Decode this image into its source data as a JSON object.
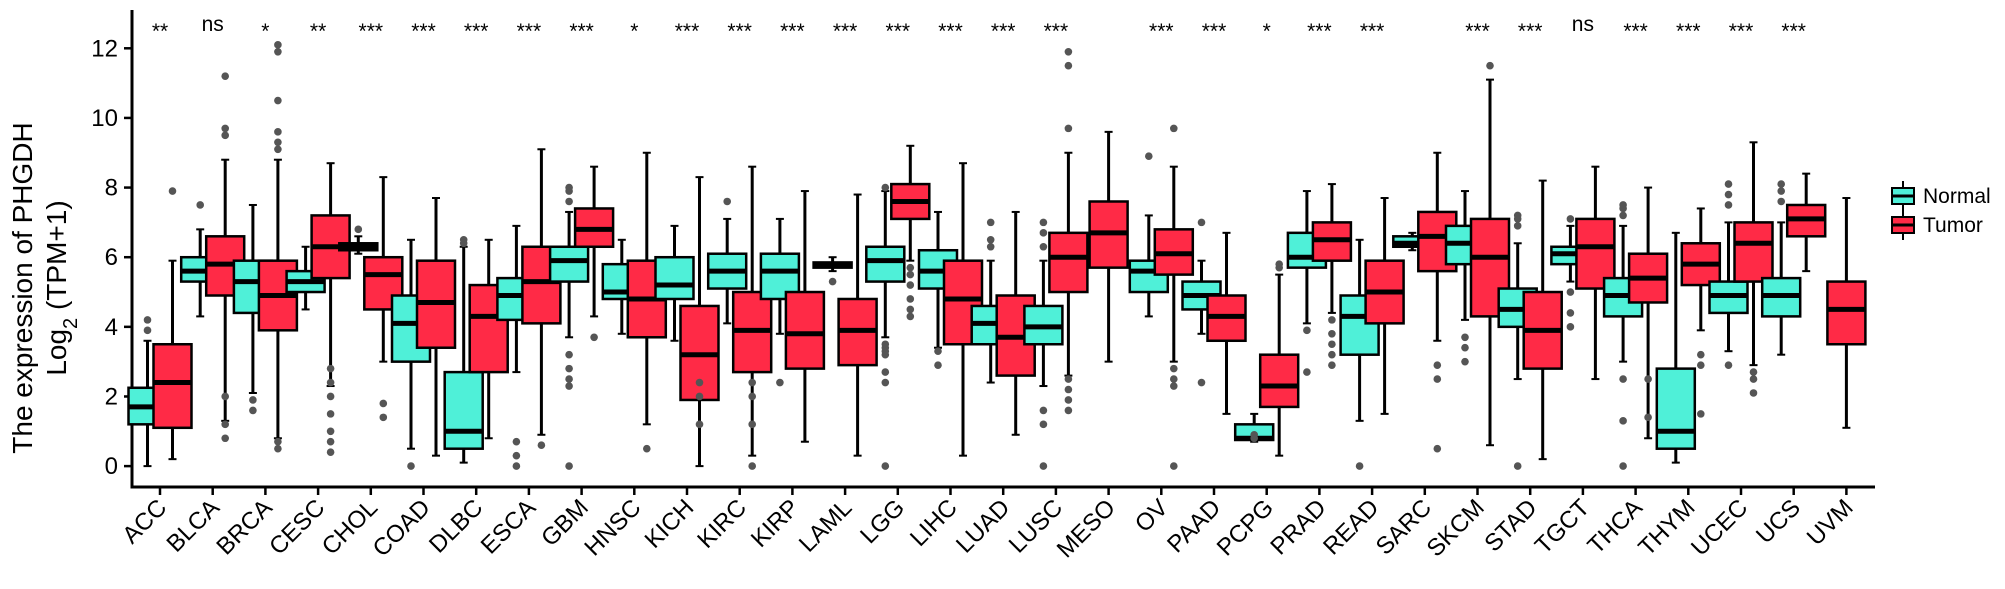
{
  "chart_data": {
    "type": "box",
    "ylabel_line1": "The expression of PHGDH",
    "ylabel_line2_main": "Log",
    "ylabel_line2_sub": "2",
    "ylabel_line2_rest": " (TPM+1)",
    "ylim": [
      -0.6,
      13.1
    ],
    "yticks": [
      0,
      2,
      4,
      6,
      8,
      10,
      12
    ],
    "colors": {
      "Normal": "#4ff0d8",
      "Tumor": "#ff2a46",
      "outlier": "#555555"
    },
    "legend": {
      "position": "right",
      "entries": [
        "Normal",
        "Tumor"
      ]
    },
    "categories": [
      {
        "name": "ACC",
        "sig": "**",
        "normal": {
          "whislo": 0.0,
          "q1": 1.2,
          "med": 1.7,
          "q3": 2.25,
          "whishi": 3.6,
          "out": [
            3.9,
            4.2
          ]
        },
        "tumor": {
          "whislo": 0.2,
          "q1": 1.1,
          "med": 2.4,
          "q3": 3.5,
          "whishi": 5.9,
          "out": [
            7.9
          ]
        }
      },
      {
        "name": "BLCA",
        "sig": "ns",
        "normal": {
          "whislo": 4.3,
          "q1": 5.3,
          "med": 5.6,
          "q3": 6.0,
          "whishi": 6.8,
          "out": [
            7.5
          ]
        },
        "tumor": {
          "whislo": 1.3,
          "q1": 4.9,
          "med": 5.8,
          "q3": 6.6,
          "whishi": 8.8,
          "out": [
            0.8,
            1.2,
            2.0,
            9.5,
            9.7,
            11.2
          ]
        }
      },
      {
        "name": "BRCA",
        "sig": "*",
        "normal": {
          "whislo": 2.1,
          "q1": 4.4,
          "med": 5.3,
          "q3": 5.9,
          "whishi": 7.5,
          "out": [
            1.6,
            1.9
          ]
        },
        "tumor": {
          "whislo": 0.8,
          "q1": 3.9,
          "med": 4.9,
          "q3": 5.9,
          "whishi": 8.8,
          "out": [
            0.5,
            0.7,
            9.1,
            9.3,
            9.6,
            10.5,
            11.9,
            12.1
          ]
        }
      },
      {
        "name": "CESC",
        "sig": "**",
        "normal": {
          "whislo": 4.5,
          "q1": 5.0,
          "med": 5.3,
          "q3": 5.6,
          "whishi": 6.3,
          "out": []
        },
        "tumor": {
          "whislo": 2.3,
          "q1": 5.4,
          "med": 6.3,
          "q3": 7.2,
          "whishi": 8.7,
          "out": [
            0.4,
            0.7,
            1.0,
            1.5,
            2.0,
            2.4,
            2.8
          ]
        }
      },
      {
        "name": "CHOL",
        "sig": "***",
        "normal": {
          "whislo": 6.1,
          "q1": 6.2,
          "med": 6.3,
          "q3": 6.4,
          "whishi": 6.6,
          "out": [
            6.8
          ]
        },
        "tumor": {
          "whislo": 3.0,
          "q1": 4.5,
          "med": 5.5,
          "q3": 6.0,
          "whishi": 8.3,
          "out": [
            1.4,
            1.8
          ]
        }
      },
      {
        "name": "COAD",
        "sig": "***",
        "normal": {
          "whislo": 0.5,
          "q1": 3.0,
          "med": 4.1,
          "q3": 4.9,
          "whishi": 6.5,
          "out": [
            0.0
          ]
        },
        "tumor": {
          "whislo": 0.3,
          "q1": 3.4,
          "med": 4.7,
          "q3": 5.9,
          "whishi": 7.7,
          "out": []
        }
      },
      {
        "name": "DLBC",
        "sig": "***",
        "normal": {
          "whislo": 0.1,
          "q1": 0.5,
          "med": 1.0,
          "q3": 2.7,
          "whishi": 6.3,
          "out": [
            6.4,
            6.5
          ]
        },
        "tumor": {
          "whislo": 0.8,
          "q1": 2.7,
          "med": 4.3,
          "q3": 5.2,
          "whishi": 6.5,
          "out": []
        }
      },
      {
        "name": "ESCA",
        "sig": "***",
        "normal": {
          "whislo": 2.7,
          "q1": 4.2,
          "med": 4.9,
          "q3": 5.4,
          "whishi": 6.9,
          "out": [
            0.0,
            0.3,
            0.7
          ]
        },
        "tumor": {
          "whislo": 0.9,
          "q1": 4.1,
          "med": 5.3,
          "q3": 6.3,
          "whishi": 9.1,
          "out": [
            0.6
          ]
        }
      },
      {
        "name": "GBM",
        "sig": "***",
        "normal": {
          "whislo": 3.7,
          "q1": 5.3,
          "med": 5.9,
          "q3": 6.3,
          "whishi": 7.3,
          "out": [
            0.0,
            2.3,
            2.5,
            2.8,
            3.2,
            7.6,
            7.9,
            8.0
          ]
        },
        "tumor": {
          "whislo": 4.3,
          "q1": 6.3,
          "med": 6.8,
          "q3": 7.4,
          "whishi": 8.6,
          "out": [
            3.7
          ]
        }
      },
      {
        "name": "HNSC",
        "sig": "*",
        "normal": {
          "whislo": 3.8,
          "q1": 4.8,
          "med": 5.0,
          "q3": 5.8,
          "whishi": 6.5,
          "out": []
        },
        "tumor": {
          "whislo": 1.2,
          "q1": 3.7,
          "med": 4.8,
          "q3": 5.9,
          "whishi": 9.0,
          "out": [
            0.5
          ]
        }
      },
      {
        "name": "KICH",
        "sig": "***",
        "normal": {
          "whislo": 3.6,
          "q1": 4.8,
          "med": 5.2,
          "q3": 6.0,
          "whishi": 6.9,
          "out": []
        },
        "tumor": {
          "whislo": 0.0,
          "q1": 1.9,
          "med": 3.2,
          "q3": 4.6,
          "whishi": 8.3,
          "out": [
            1.2,
            2.0,
            2.4
          ]
        }
      },
      {
        "name": "KIRC",
        "sig": "***",
        "normal": {
          "whislo": 4.1,
          "q1": 5.1,
          "med": 5.6,
          "q3": 6.1,
          "whishi": 7.1,
          "out": [
            7.6
          ]
        },
        "tumor": {
          "whislo": 0.3,
          "q1": 2.7,
          "med": 3.9,
          "q3": 5.0,
          "whishi": 8.6,
          "out": [
            0.0,
            1.2,
            2.0,
            2.4
          ]
        }
      },
      {
        "name": "KIRP",
        "sig": "***",
        "normal": {
          "whislo": 3.8,
          "q1": 4.8,
          "med": 5.6,
          "q3": 6.1,
          "whishi": 7.1,
          "out": [
            2.4
          ]
        },
        "tumor": {
          "whislo": 0.7,
          "q1": 2.8,
          "med": 3.8,
          "q3": 5.0,
          "whishi": 7.9,
          "out": []
        }
      },
      {
        "name": "LAML",
        "sig": "***",
        "normal": {
          "whislo": 5.6,
          "q1": 5.7,
          "med": 5.75,
          "q3": 5.85,
          "whishi": 6.0,
          "out": [
            5.3
          ]
        },
        "tumor": {
          "whislo": 0.3,
          "q1": 2.9,
          "med": 3.9,
          "q3": 4.8,
          "whishi": 7.8,
          "out": []
        }
      },
      {
        "name": "LGG",
        "sig": "***",
        "normal": {
          "whislo": 3.7,
          "q1": 5.3,
          "med": 5.9,
          "q3": 6.3,
          "whishi": 7.9,
          "out": [
            0.0,
            2.4,
            2.7,
            3.2,
            3.3,
            3.4,
            3.5,
            8.0
          ]
        },
        "tumor": {
          "whislo": 5.9,
          "q1": 7.1,
          "med": 7.6,
          "q3": 8.1,
          "whishi": 9.2,
          "out": [
            4.3,
            4.5,
            4.8,
            5.2,
            5.5,
            5.7
          ]
        }
      },
      {
        "name": "LIHC",
        "sig": "***",
        "normal": {
          "whislo": 3.4,
          "q1": 5.1,
          "med": 5.6,
          "q3": 6.2,
          "whishi": 7.3,
          "out": [
            2.9,
            3.3
          ]
        },
        "tumor": {
          "whislo": 0.3,
          "q1": 3.5,
          "med": 4.8,
          "q3": 5.9,
          "whishi": 8.7,
          "out": []
        }
      },
      {
        "name": "LUAD",
        "sig": "***",
        "normal": {
          "whislo": 2.4,
          "q1": 3.5,
          "med": 4.1,
          "q3": 4.6,
          "whishi": 5.9,
          "out": [
            6.3,
            6.5,
            7.0
          ]
        },
        "tumor": {
          "whislo": 0.9,
          "q1": 2.6,
          "med": 3.7,
          "q3": 4.9,
          "whishi": 7.3,
          "out": []
        }
      },
      {
        "name": "LUSC",
        "sig": "***",
        "normal": {
          "whislo": 2.3,
          "q1": 3.5,
          "med": 4.0,
          "q3": 4.6,
          "whishi": 5.9,
          "out": [
            0.0,
            1.2,
            1.6,
            6.3,
            6.7,
            7.0
          ]
        },
        "tumor": {
          "whislo": 2.6,
          "q1": 5.0,
          "med": 6.0,
          "q3": 6.7,
          "whishi": 9.0,
          "out": [
            1.6,
            1.9,
            2.2,
            2.5,
            9.7,
            11.5,
            11.9
          ]
        }
      },
      {
        "name": "MESO",
        "sig": "",
        "normal": null,
        "tumor": {
          "whislo": 3.0,
          "q1": 5.7,
          "med": 6.7,
          "q3": 7.6,
          "whishi": 9.6,
          "out": []
        }
      },
      {
        "name": "OV",
        "sig": "***",
        "normal": {
          "whislo": 4.3,
          "q1": 5.0,
          "med": 5.6,
          "q3": 5.9,
          "whishi": 7.2,
          "out": [
            8.9
          ]
        },
        "tumor": {
          "whislo": 3.0,
          "q1": 5.5,
          "med": 6.1,
          "q3": 6.8,
          "whishi": 8.6,
          "out": [
            0.0,
            2.3,
            2.5,
            2.8,
            9.7
          ]
        }
      },
      {
        "name": "PAAD",
        "sig": "***",
        "normal": {
          "whislo": 3.8,
          "q1": 4.5,
          "med": 4.9,
          "q3": 5.3,
          "whishi": 5.9,
          "out": [
            2.4,
            7.0
          ]
        },
        "tumor": {
          "whislo": 1.5,
          "q1": 3.6,
          "med": 4.3,
          "q3": 4.9,
          "whishi": 6.7,
          "out": []
        }
      },
      {
        "name": "PCPG",
        "sig": "*",
        "normal": {
          "whislo": 0.7,
          "q1": 0.75,
          "med": 0.8,
          "q3": 1.2,
          "whishi": 1.5,
          "out": [
            0.8,
            0.9
          ]
        },
        "tumor": {
          "whislo": 0.3,
          "q1": 1.7,
          "med": 2.3,
          "q3": 3.2,
          "whishi": 5.5,
          "out": [
            5.7,
            5.8
          ]
        }
      },
      {
        "name": "PRAD",
        "sig": "***",
        "normal": {
          "whislo": 4.1,
          "q1": 5.7,
          "med": 6.0,
          "q3": 6.7,
          "whishi": 7.9,
          "out": [
            2.7,
            3.9
          ]
        },
        "tumor": {
          "whislo": 4.4,
          "q1": 5.9,
          "med": 6.5,
          "q3": 7.0,
          "whishi": 8.1,
          "out": [
            2.9,
            3.2,
            3.5,
            3.8,
            4.2
          ]
        }
      },
      {
        "name": "READ",
        "sig": "***",
        "normal": {
          "whislo": 1.3,
          "q1": 3.2,
          "med": 4.3,
          "q3": 4.9,
          "whishi": 6.5,
          "out": [
            0.0
          ]
        },
        "tumor": {
          "whislo": 1.5,
          "q1": 4.1,
          "med": 5.0,
          "q3": 5.9,
          "whishi": 7.7,
          "out": []
        }
      },
      {
        "name": "SARC",
        "sig": "",
        "normal": {
          "whislo": 6.2,
          "q1": 6.3,
          "med": 6.4,
          "q3": 6.6,
          "whishi": 6.7,
          "out": []
        },
        "tumor": {
          "whislo": 3.6,
          "q1": 5.6,
          "med": 6.6,
          "q3": 7.3,
          "whishi": 9.0,
          "out": [
            0.5,
            2.5,
            2.9
          ]
        }
      },
      {
        "name": "SKCM",
        "sig": "***",
        "normal": {
          "whislo": 4.2,
          "q1": 5.8,
          "med": 6.4,
          "q3": 6.9,
          "whishi": 7.9,
          "out": [
            3.0,
            3.4,
            3.7
          ]
        },
        "tumor": {
          "whislo": 0.6,
          "q1": 4.3,
          "med": 6.0,
          "q3": 7.1,
          "whishi": 11.1,
          "out": [
            11.5
          ]
        }
      },
      {
        "name": "STAD",
        "sig": "***",
        "normal": {
          "whislo": 2.5,
          "q1": 4.0,
          "med": 4.5,
          "q3": 5.1,
          "whishi": 6.4,
          "out": [
            0.0,
            6.9,
            7.1,
            7.2
          ]
        },
        "tumor": {
          "whislo": 0.2,
          "q1": 2.8,
          "med": 3.9,
          "q3": 5.0,
          "whishi": 8.2,
          "out": []
        }
      },
      {
        "name": "TGCT",
        "sig": "ns",
        "normal": {
          "whislo": 5.3,
          "q1": 5.8,
          "med": 6.1,
          "q3": 6.3,
          "whishi": 6.9,
          "out": [
            4.0,
            4.4,
            5.0,
            7.1
          ]
        },
        "tumor": {
          "whislo": 2.5,
          "q1": 5.1,
          "med": 6.3,
          "q3": 7.1,
          "whishi": 8.6,
          "out": []
        }
      },
      {
        "name": "THCA",
        "sig": "***",
        "normal": {
          "whislo": 3.0,
          "q1": 4.3,
          "med": 4.9,
          "q3": 5.4,
          "whishi": 6.9,
          "out": [
            0.0,
            1.3,
            2.5,
            7.2,
            7.4,
            7.5
          ]
        },
        "tumor": {
          "whislo": 0.8,
          "q1": 4.7,
          "med": 5.4,
          "q3": 6.1,
          "whishi": 8.0,
          "out": [
            1.4,
            2.5
          ]
        }
      },
      {
        "name": "THYM",
        "sig": "***",
        "normal": {
          "whislo": 0.1,
          "q1": 0.5,
          "med": 1.0,
          "q3": 2.8,
          "whishi": 6.7,
          "out": []
        },
        "tumor": {
          "whislo": 3.9,
          "q1": 5.2,
          "med": 5.8,
          "q3": 6.4,
          "whishi": 7.4,
          "out": [
            1.5,
            2.9,
            3.2
          ]
        }
      },
      {
        "name": "UCEC",
        "sig": "***",
        "normal": {
          "whislo": 3.3,
          "q1": 4.4,
          "med": 4.9,
          "q3": 5.3,
          "whishi": 7.0,
          "out": [
            2.9,
            7.5,
            7.8,
            8.1
          ]
        },
        "tumor": {
          "whislo": 2.9,
          "q1": 5.3,
          "med": 6.4,
          "q3": 7.0,
          "whishi": 9.3,
          "out": [
            2.1,
            2.5,
            2.7
          ]
        }
      },
      {
        "name": "UCS",
        "sig": "***",
        "normal": {
          "whislo": 3.2,
          "q1": 4.3,
          "med": 4.9,
          "q3": 5.4,
          "whishi": 7.0,
          "out": [
            7.6,
            7.9,
            8.1
          ]
        },
        "tumor": {
          "whislo": 5.6,
          "q1": 6.6,
          "med": 7.1,
          "q3": 7.5,
          "whishi": 8.4,
          "out": []
        }
      },
      {
        "name": "UVM",
        "sig": "",
        "normal": null,
        "tumor": {
          "whislo": 1.1,
          "q1": 3.5,
          "med": 4.5,
          "q3": 5.3,
          "whishi": 7.7,
          "out": []
        }
      }
    ]
  }
}
